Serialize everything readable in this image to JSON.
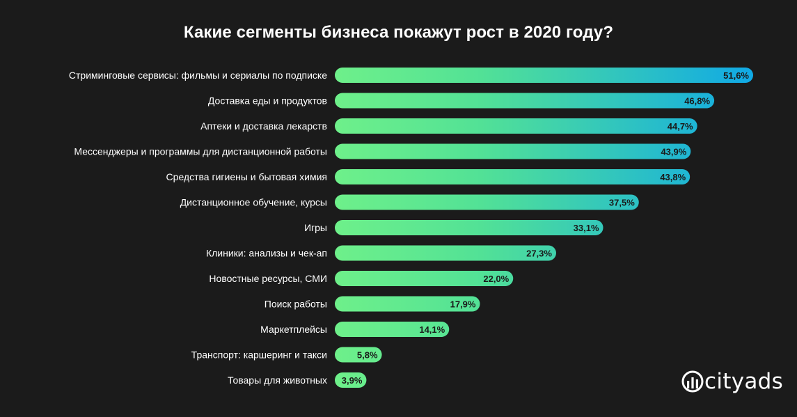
{
  "chart_data": {
    "type": "bar",
    "orientation": "horizontal",
    "title": "Какие сегменты бизнеса покажут рост в 2020 году?",
    "categories": [
      "Стриминговые сервисы: фильмы и сериалы по подписке",
      "Доставка еды и продуктов",
      "Аптеки и доставка лекарств",
      "Мессенджеры и программы для дистанционной работы",
      "Средства гигиены и бытовая химия",
      "Дистанционное обучение, курсы",
      "Игры",
      "Клиники: анализы и чек-ап",
      "Новостные ресурсы, СМИ",
      "Поиск работы",
      "Маркетплейсы",
      "Транспорт: каршеринг и такси",
      "Товары для животных"
    ],
    "values": [
      51.6,
      46.8,
      44.7,
      43.9,
      43.8,
      37.5,
      33.1,
      27.3,
      22.0,
      17.9,
      14.1,
      5.8,
      3.9
    ],
    "value_labels": [
      "51,6%",
      "46,8%",
      "44,7%",
      "43,9%",
      "43,8%",
      "37,5%",
      "33,1%",
      "27,3%",
      "22,0%",
      "17,9%",
      "14,1%",
      "5,8%",
      "3,9%"
    ],
    "xlim": [
      0,
      51.6
    ],
    "grid": false,
    "colors": {
      "gradient_start": "#6ef08a",
      "gradient_end": "#10a9e6",
      "background": "#1b1b1b"
    }
  },
  "brand": {
    "name": "cityads",
    "icon": "cityads-logo-icon"
  }
}
